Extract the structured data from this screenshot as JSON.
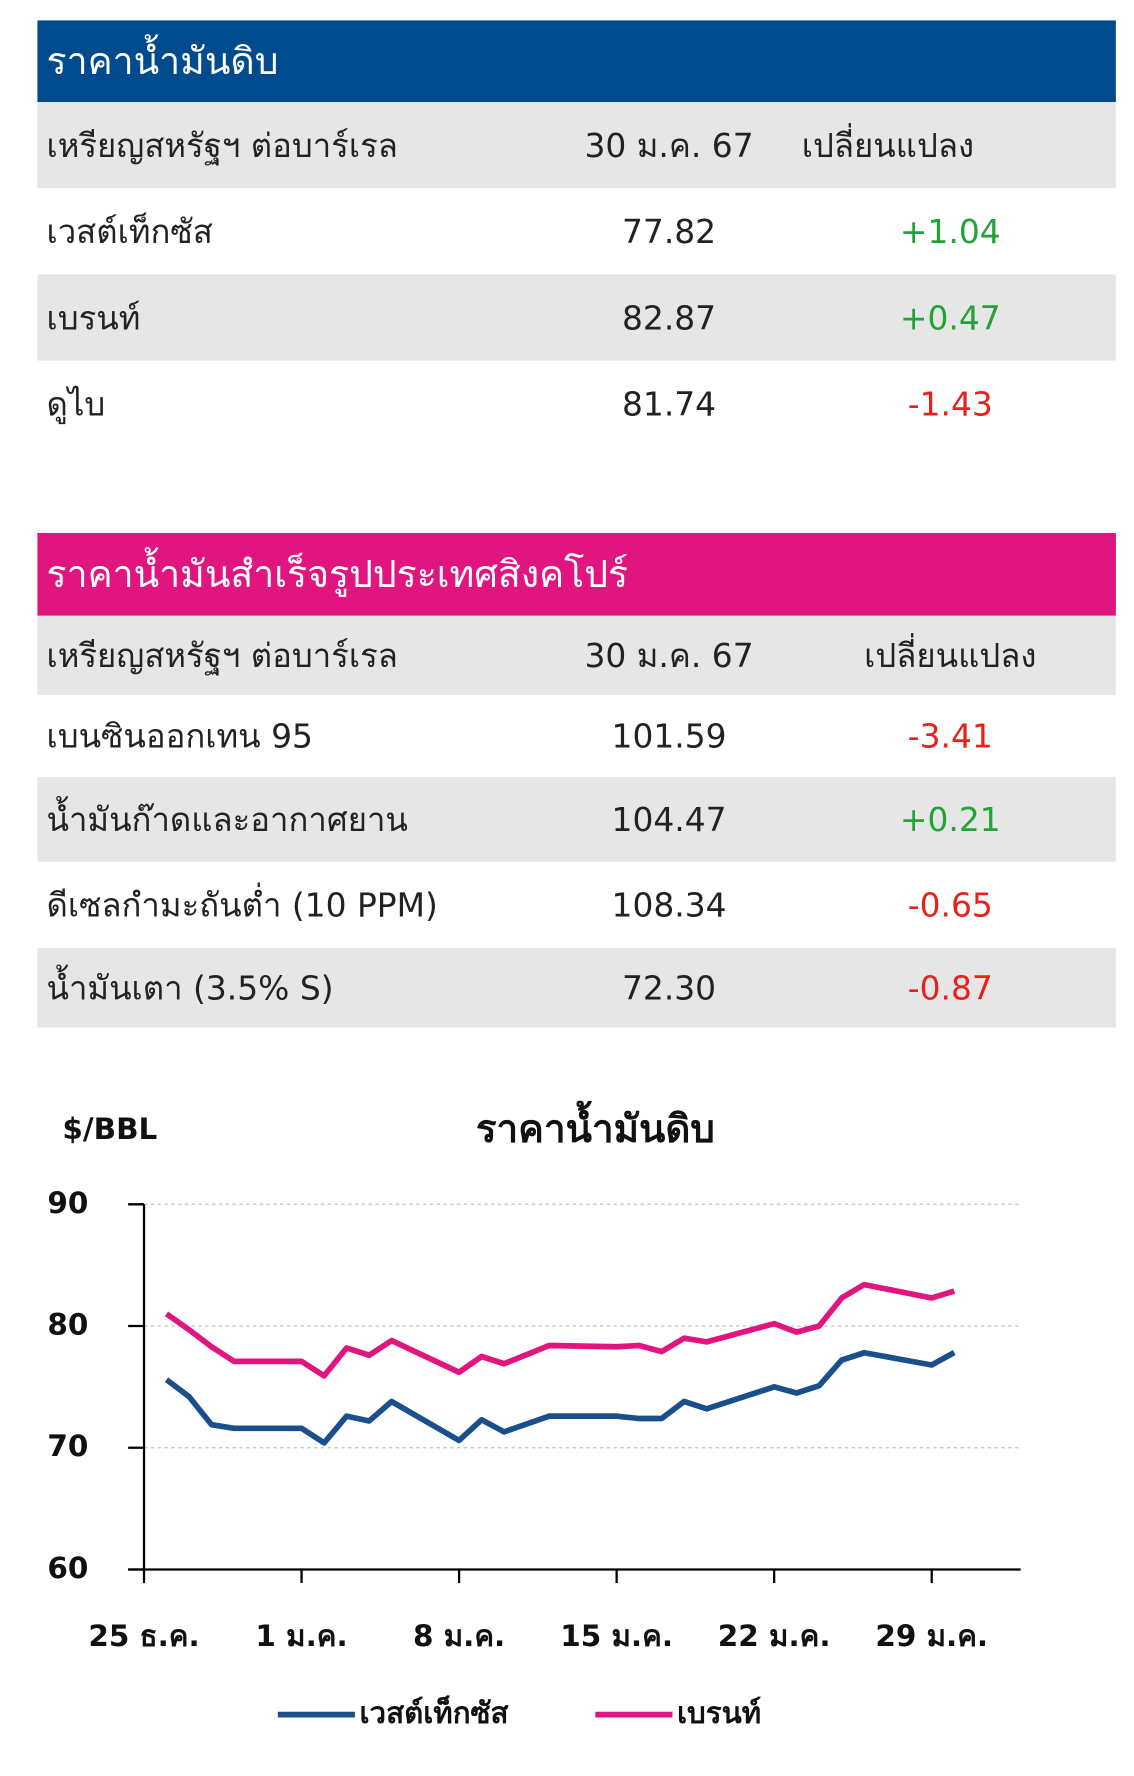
{
  "tables": [
    {
      "title": "ราคาน้ำมันดิบ",
      "headers": [
        "เหรียญสหรัฐฯ ต่อบาร์เรล",
        "30 ม.ค. 67",
        "เปลี่ยนแปลง"
      ],
      "rows": [
        [
          "เวสต์เท็กซัส",
          "77.82",
          "+1.04"
        ],
        [
          "เบรนท์",
          "82.87",
          "+0.47"
        ],
        [
          "ดูไบ",
          "81.74",
          "-1.43"
        ]
      ]
    },
    {
      "title": "ราคาน้ำมันสำเร็จรูปประเทศสิงคโปร์",
      "headers": [
        "เหรียญสหรัฐฯ ต่อบาร์เรล",
        "30 ม.ค. 67",
        "เปลี่ยนแปลง"
      ],
      "rows": [
        [
          "เบนซินออกเทน 95",
          "101.59",
          "-3.41"
        ],
        [
          "น้ำมันก๊าดและอากาศยาน",
          "104.47",
          "+0.21"
        ],
        [
          "ดีเซลกำมะถันต่ำ (10 PPM)",
          "108.34",
          "-0.65"
        ],
        [
          "น้ำมันเตา (3.5% S)",
          "72.30",
          "-0.87"
        ]
      ]
    }
  ],
  "chart_data": {
    "type": "line",
    "title": "ราคาน้ำมันดิบ",
    "y_label": "$/BBL",
    "x": [
      1,
      2,
      3,
      4,
      7,
      8,
      9,
      10,
      11,
      14,
      15,
      16,
      18,
      21,
      22,
      23,
      24,
      25,
      28,
      29,
      30,
      31,
      32,
      35,
      36
    ],
    "series": [
      {
        "name": "เวสต์เท็กซัส",
        "color": "#1b4f8c",
        "values": [
          75.6,
          74.2,
          71.9,
          71.6,
          71.6,
          70.4,
          72.6,
          72.2,
          73.8,
          70.6,
          72.3,
          71.3,
          72.6,
          72.6,
          72.4,
          72.4,
          73.8,
          73.2,
          75.0,
          74.5,
          75.1,
          77.2,
          77.8,
          76.8,
          77.82
        ]
      },
      {
        "name": "เบรนท์",
        "color": "#e0157f",
        "values": [
          81.0,
          79.7,
          78.3,
          77.1,
          77.1,
          75.9,
          78.2,
          77.6,
          78.8,
          76.2,
          77.5,
          76.9,
          78.4,
          78.3,
          78.4,
          77.9,
          79.0,
          78.7,
          80.2,
          79.5,
          80.0,
          82.3,
          83.4,
          82.3,
          82.87
        ]
      }
    ],
    "xlim": [
      0,
      39
    ],
    "xticks": [
      {
        "value": 0,
        "label": "25 ธ.ค."
      },
      {
        "value": 7,
        "label": "1 ม.ค."
      },
      {
        "value": 14,
        "label": "8 ม.ค."
      },
      {
        "value": 21,
        "label": "15 ม.ค."
      },
      {
        "value": 28,
        "label": "22 ม.ค."
      },
      {
        "value": 35,
        "label": "29 ม.ค."
      }
    ],
    "ylim": [
      60,
      90
    ],
    "yticks": [
      60,
      70,
      80,
      90
    ],
    "grid": true
  }
}
